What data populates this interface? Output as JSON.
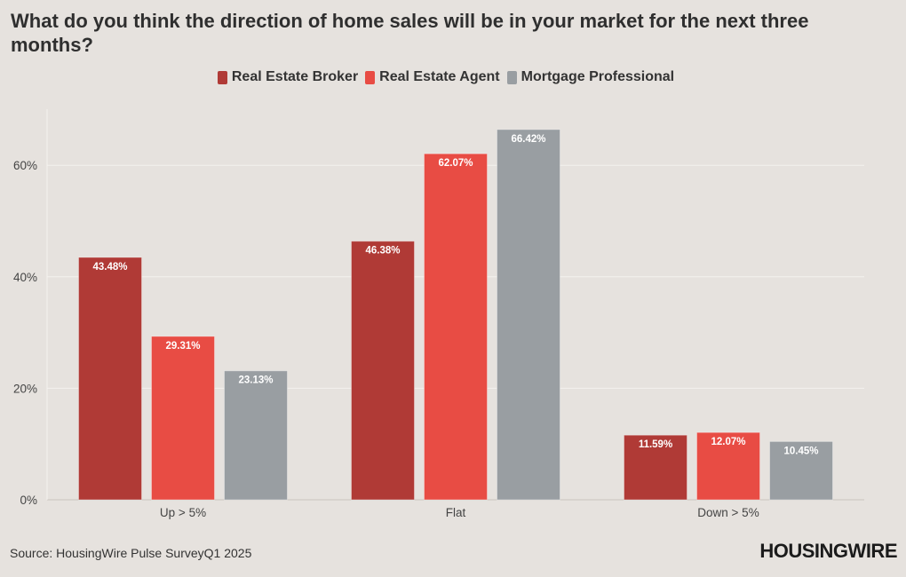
{
  "chart_data": {
    "type": "bar",
    "title": "What do you think the direction of home sales will be in your market for the next three months?",
    "categories": [
      "Up > 5%",
      "Flat",
      "Down > 5%"
    ],
    "series": [
      {
        "name": "Real Estate Broker",
        "color": "#b03a36",
        "values": [
          43.48,
          46.38,
          11.59
        ],
        "labels": [
          "43.48%",
          "46.38%",
          "11.59%"
        ]
      },
      {
        "name": "Real Estate Agent",
        "color": "#e84c44",
        "values": [
          29.31,
          62.07,
          12.07
        ],
        "labels": [
          "29.31%",
          "62.07%",
          "12.07%"
        ]
      },
      {
        "name": "Mortgage Professional",
        "color": "#999ea2",
        "values": [
          23.13,
          66.42,
          10.45
        ],
        "labels": [
          "23.13%",
          "66.42%",
          "10.45%"
        ]
      }
    ],
    "yticks": [
      "0%",
      "20%",
      "40%",
      "60%"
    ],
    "ytick_values": [
      0,
      20,
      40,
      60
    ],
    "ylim": [
      0,
      70
    ],
    "grid": true,
    "legend_position": "top-center"
  },
  "footer": {
    "source": "Source: HousingWire Pulse SurveyQ1 2025",
    "brand": "HOUSINGWIRE"
  }
}
